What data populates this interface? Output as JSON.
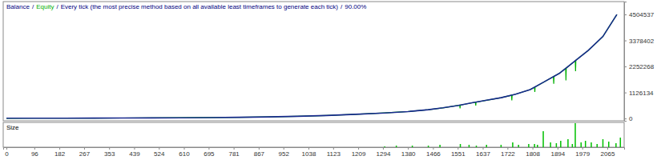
{
  "chart_data": [
    {
      "type": "line",
      "title": "Every tick (the most precise method based on all available least timeframes to generate each tick)",
      "subtitle": "90.00%",
      "separator": "/",
      "xlim": [
        -11,
        2123
      ],
      "ylim": [
        -100000,
        5060000
      ],
      "yticks": [
        0,
        1126134,
        2252268,
        3378402,
        4504537
      ],
      "tick_labels": "y",
      "grid": false,
      "series": [
        {
          "name": "Balance",
          "color": "#1a2a8f",
          "x": [
            0,
            100,
            200,
            300,
            400,
            500,
            600,
            700,
            800,
            900,
            1000,
            1100,
            1200,
            1300,
            1380,
            1450,
            1500,
            1550,
            1600,
            1650,
            1700,
            1750,
            1800,
            1850,
            1900,
            1950,
            2000,
            2050,
            2098
          ],
          "values": [
            10000,
            12000,
            14000,
            17000,
            21000,
            26000,
            32000,
            40000,
            52000,
            70000,
            95000,
            130000,
            180000,
            240000,
            300000,
            380000,
            460000,
            560000,
            680000,
            790000,
            900000,
            1050000,
            1250000,
            1600000,
            1950000,
            2450000,
            2950000,
            3550000,
            4500000
          ]
        },
        {
          "name": "Equity",
          "color": "#00b000",
          "x": [
            0,
            100,
            200,
            300,
            400,
            500,
            600,
            700,
            800,
            900,
            1000,
            1100,
            1200,
            1300,
            1380,
            1450,
            1500,
            1550,
            1558,
            1559,
            1560,
            1600,
            1612,
            1613,
            1614,
            1650,
            1700,
            1736,
            1737,
            1738,
            1750,
            1800,
            1815,
            1816,
            1817,
            1850,
            1880,
            1881,
            1882,
            1900,
            1922,
            1923,
            1924,
            1950,
            1955,
            1956,
            1957,
            2000,
            2050,
            2098
          ],
          "values": [
            10000,
            12000,
            14000,
            17000,
            21000,
            26000,
            32000,
            40000,
            52000,
            70000,
            95000,
            130000,
            180000,
            240000,
            300000,
            380000,
            460000,
            560000,
            575000,
            440000,
            578000,
            680000,
            705000,
            560000,
            708000,
            790000,
            900000,
            1005000,
            780000,
            1010000,
            1050000,
            1250000,
            1350000,
            1150000,
            1360000,
            1600000,
            1810000,
            1500000,
            1825000,
            1950000,
            2170000,
            1650000,
            2180000,
            2450000,
            2500000,
            2050000,
            2520000,
            2950000,
            3550000,
            4500000
          ]
        }
      ]
    },
    {
      "type": "bar",
      "title": "Size",
      "color": "#00c000",
      "xlim": [
        -11,
        2123
      ],
      "xticks": [
        0,
        96,
        182,
        267,
        353,
        439,
        524,
        610,
        695,
        781,
        867,
        952,
        1038,
        1123,
        1209,
        1294,
        1380,
        1466,
        1551,
        1637,
        1722,
        1808,
        1894,
        1979,
        2065
      ],
      "ylim": [
        0,
        31
      ],
      "tick_labels": "x",
      "grid": false,
      "x": [
        1300,
        1340,
        1395,
        1450,
        1490,
        1560,
        1590,
        1615,
        1650,
        1700,
        1740,
        1760,
        1795,
        1815,
        1825,
        1845,
        1870,
        1890,
        1905,
        1930,
        1945,
        1955,
        1975,
        1990,
        2010,
        2030,
        2050,
        2070,
        2095,
        2110
      ],
      "values": [
        1,
        2,
        2,
        2,
        3,
        4,
        3,
        2,
        3,
        3,
        6,
        3,
        4,
        4,
        3,
        20,
        6,
        5,
        8,
        10,
        4,
        30,
        6,
        8,
        6,
        4,
        10,
        7,
        5,
        12
      ]
    }
  ]
}
